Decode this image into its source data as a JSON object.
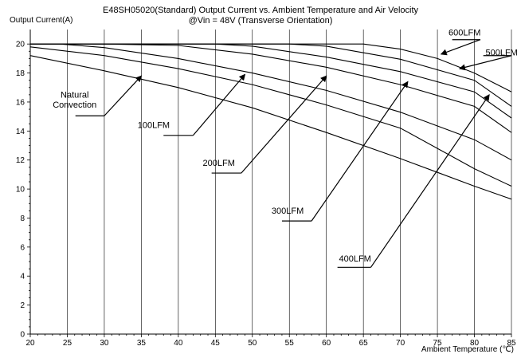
{
  "chart_data": {
    "type": "line",
    "title": "E48SH05020(Standard)  Output Current vs. Ambient Temperature and Air Velocity",
    "subtitle": "@Vin = 48V (Transverse Orientation)",
    "xlabel": "Ambient Temperature (℃)",
    "ylabel": "Output Current(A)",
    "xlim": [
      20,
      85
    ],
    "ylim": [
      0,
      21
    ],
    "x_ticks": [
      20,
      25,
      30,
      35,
      40,
      45,
      50,
      55,
      60,
      65,
      70,
      75,
      80,
      85
    ],
    "y_ticks": [
      0,
      2,
      4,
      6,
      8,
      10,
      12,
      14,
      16,
      18,
      20
    ],
    "grid": "vertical",
    "series": [
      {
        "name": "Natural\nConvection",
        "x": [
          20,
          30,
          40,
          50,
          60,
          70,
          75,
          80,
          85
        ],
        "y": [
          19.2,
          18.15,
          17.0,
          15.6,
          13.9,
          12.1,
          11.15,
          10.2,
          9.3
        ]
      },
      {
        "name": "100LFM",
        "x": [
          20,
          30,
          40,
          50,
          60,
          70,
          80,
          85
        ],
        "y": [
          19.8,
          19.2,
          18.3,
          17.2,
          15.8,
          14.2,
          11.4,
          10.2
        ]
      },
      {
        "name": "200LFM",
        "x": [
          20,
          24,
          30,
          40,
          50,
          60,
          70,
          80,
          85
        ],
        "y": [
          20.0,
          20.0,
          19.75,
          19.0,
          18.0,
          16.8,
          15.3,
          13.4,
          12.0
        ]
      },
      {
        "name": "300LFM",
        "x": [
          20,
          30,
          40,
          50,
          60,
          70,
          80,
          85
        ],
        "y": [
          20.0,
          20.0,
          19.9,
          19.3,
          18.4,
          17.2,
          15.7,
          13.9
        ]
      },
      {
        "name": "400LFM",
        "x": [
          20,
          40,
          45,
          50,
          60,
          70,
          80,
          85
        ],
        "y": [
          20.0,
          20.0,
          20.0,
          19.85,
          19.1,
          18.1,
          16.7,
          14.9
        ]
      },
      {
        "name": "500LFM",
        "x": [
          20,
          50,
          55,
          60,
          70,
          80,
          85
        ],
        "y": [
          20.0,
          20.0,
          20.0,
          19.85,
          18.95,
          17.5,
          15.7
        ]
      },
      {
        "name": "600LFM",
        "x": [
          20,
          60,
          65,
          70,
          75,
          80,
          85
        ],
        "y": [
          20.0,
          20.0,
          20.0,
          19.65,
          19.0,
          18.0,
          16.7
        ]
      }
    ],
    "series_colors": [
      "#000000",
      "#000000",
      "#000000",
      "#000000",
      "#000000",
      "#000000",
      "#000000"
    ],
    "annotations": [
      {
        "label": "Natural\nConvection",
        "text_x": 26,
        "text_y": 16.3,
        "shelf_from_x": 26.1,
        "shelf_to_x": 30,
        "shelf_y": 15.05,
        "arrow_to_x": 35,
        "arrow_to_y": 17.8
      },
      {
        "label": "100LFM",
        "text_x": 34.5,
        "text_y": 14.2,
        "shelf_from_x": 38,
        "shelf_to_x": 42,
        "shelf_y": 13.7,
        "arrow_to_x": 49,
        "arrow_to_y": 17.9
      },
      {
        "label": "200LFM",
        "text_x": 43.3,
        "text_y": 11.6,
        "shelf_from_x": 44.5,
        "shelf_to_x": 48.5,
        "shelf_y": 11.1,
        "arrow_to_x": 60,
        "arrow_to_y": 17.8
      },
      {
        "label": "300LFM",
        "text_x": 52.6,
        "text_y": 8.3,
        "shelf_from_x": 54,
        "shelf_to_x": 58,
        "shelf_y": 7.8,
        "arrow_to_x": 71,
        "arrow_to_y": 17.4
      },
      {
        "label": "400LFM",
        "text_x": 61.7,
        "text_y": 5.0,
        "shelf_from_x": 61.5,
        "shelf_to_x": 66,
        "shelf_y": 4.6,
        "arrow_to_x": 82,
        "arrow_to_y": 16.5
      },
      {
        "label": "500LFM",
        "text_x": 81.5,
        "text_y": 19.2,
        "shelf_from_x": 81.2,
        "shelf_to_x": 85,
        "shelf_y": 19.2,
        "arrow_to_x": 78,
        "arrow_to_y": 18.3
      },
      {
        "label": "600LFM",
        "text_x": 76.5,
        "text_y": 20.6,
        "shelf_from_x": 77,
        "shelf_to_x": 80.8,
        "shelf_y": 20.3,
        "arrow_to_x": 75.5,
        "arrow_to_y": 19.3
      }
    ]
  }
}
